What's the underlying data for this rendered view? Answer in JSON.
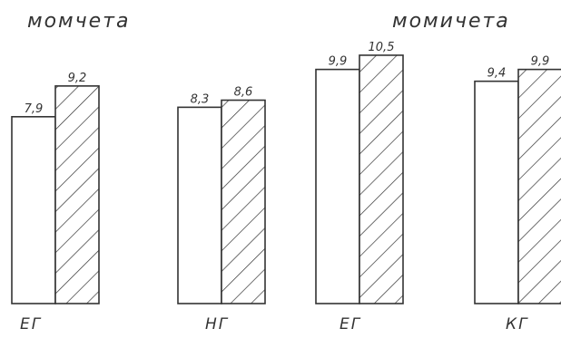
{
  "chart_data": {
    "type": "bar",
    "title": "",
    "xlabel": "",
    "ylabel": "",
    "groups": [
      {
        "label": "момчета"
      },
      {
        "label": "момичета"
      }
    ],
    "categories": [
      "ЕГ",
      "НГ",
      "ЕГ",
      "КГ"
    ],
    "series": [
      {
        "style": "plain",
        "values": [
          7.9,
          8.3,
          9.9,
          9.4
        ]
      },
      {
        "style": "hatched",
        "values": [
          9.2,
          8.6,
          10.5,
          9.9
        ]
      }
    ],
    "value_labels": [
      [
        "7,9",
        "8,3",
        "9,9",
        "9,4"
      ],
      [
        "9,2",
        "8,6",
        "10,5",
        "9,9"
      ]
    ],
    "colors": {
      "outline": "#333333",
      "fill": "#ffffff",
      "hatch": "#333333"
    }
  }
}
